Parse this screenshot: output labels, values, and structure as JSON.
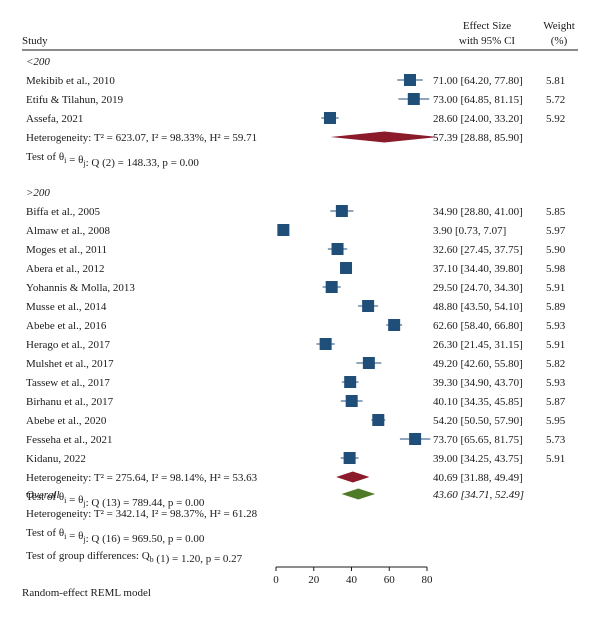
{
  "header": {
    "study": "Study",
    "effect_line1": "Effect Size",
    "effect_line2": "with 95% CI",
    "weight_line1": "Weight",
    "weight_line2": "(%)"
  },
  "footer_model": "Random-effect REML model",
  "colors": {
    "box": "#1f4e79",
    "subgroup_diamond": "#8b1a2b",
    "overall_diamond": "#4f7a28",
    "line": "#1f4e79"
  },
  "chart_data": {
    "type": "forest",
    "xlim": [
      0,
      80
    ],
    "x_ticks": [
      0,
      20,
      40,
      60,
      80
    ],
    "subgroups": [
      {
        "label": "<200",
        "studies": [
          {
            "name": "Mekibib et al., 2010",
            "es": 71.0,
            "lo": 64.2,
            "hi": 77.8,
            "es_text": "71.00 [64.20, 77.80]",
            "weight": "5.81"
          },
          {
            "name": "Etifu & Tilahun, 2019",
            "es": 73.0,
            "lo": 64.85,
            "hi": 81.15,
            "es_text": "73.00 [64.85, 81.15]",
            "weight": "5.72"
          },
          {
            "name": "Assefa, 2021",
            "es": 28.6,
            "lo": 24.0,
            "hi": 33.2,
            "es_text": "28.60 [24.00, 33.20]",
            "weight": "5.92"
          }
        ],
        "summary": {
          "es": 57.39,
          "lo": 28.88,
          "hi": 85.9,
          "es_text": "57.39 [28.88, 85.90]"
        },
        "heterogeneity": "Heterogeneity: T² = 623.07, I² = 98.33%, H² = 59.71",
        "test": "Test of θi = θj: Q (2) = 148.33, p = 0.00"
      },
      {
        "label": ">200",
        "studies": [
          {
            "name": "Biffa et al., 2005",
            "es": 34.9,
            "lo": 28.8,
            "hi": 41.0,
            "es_text": "34.90 [28.80, 41.00]",
            "weight": "5.85"
          },
          {
            "name": "Almaw et al., 2008",
            "es": 3.9,
            "lo": 0.73,
            "hi": 7.07,
            "es_text": "3.90 [0.73, 7.07]",
            "weight": "5.97"
          },
          {
            "name": "Moges et al., 2011",
            "es": 32.6,
            "lo": 27.45,
            "hi": 37.75,
            "es_text": "32.60 [27.45, 37.75]",
            "weight": "5.90"
          },
          {
            "name": "Abera et al., 2012",
            "es": 37.1,
            "lo": 34.4,
            "hi": 39.8,
            "es_text": "37.10 [34.40, 39.80]",
            "weight": "5.98"
          },
          {
            "name": "Yohannis & Molla, 2013",
            "es": 29.5,
            "lo": 24.7,
            "hi": 34.3,
            "es_text": "29.50 [24.70, 34.30]",
            "weight": "5.91"
          },
          {
            "name": "Musse et al., 2014",
            "es": 48.8,
            "lo": 43.5,
            "hi": 54.1,
            "es_text": "48.80 [43.50, 54.10]",
            "weight": "5.89"
          },
          {
            "name": "Abebe et al., 2016",
            "es": 62.6,
            "lo": 58.4,
            "hi": 66.8,
            "es_text": "62.60 [58.40, 66.80]",
            "weight": "5.93"
          },
          {
            "name": "Herago et al., 2017",
            "es": 26.3,
            "lo": 21.45,
            "hi": 31.15,
            "es_text": "26.30 [21.45, 31.15]",
            "weight": "5.91"
          },
          {
            "name": "Mulshet et al., 2017",
            "es": 49.2,
            "lo": 42.6,
            "hi": 55.8,
            "es_text": "49.20 [42.60, 55.80]",
            "weight": "5.82"
          },
          {
            "name": "Tassew et al., 2017",
            "es": 39.3,
            "lo": 34.9,
            "hi": 43.7,
            "es_text": "39.30 [34.90, 43.70]",
            "weight": "5.93"
          },
          {
            "name": "Birhanu et al., 2017",
            "es": 40.1,
            "lo": 34.35,
            "hi": 45.85,
            "es_text": "40.10 [34.35, 45.85]",
            "weight": "5.87"
          },
          {
            "name": "Abebe et al., 2020",
            "es": 54.2,
            "lo": 50.5,
            "hi": 57.9,
            "es_text": "54.20 [50.50, 57.90]",
            "weight": "5.95"
          },
          {
            "name": "Fesseha et al., 2021",
            "es": 73.7,
            "lo": 65.65,
            "hi": 81.75,
            "es_text": "73.70 [65.65, 81.75]",
            "weight": "5.73"
          },
          {
            "name": "Kidanu, 2022",
            "es": 39.0,
            "lo": 34.25,
            "hi": 43.75,
            "es_text": "39.00 [34.25, 43.75]",
            "weight": "5.91"
          }
        ],
        "summary": {
          "es": 40.69,
          "lo": 31.88,
          "hi": 49.49,
          "es_text": "40.69 [31.88, 49.49]"
        },
        "heterogeneity": "Heterogeneity: T² = 275.64, I² = 98.14%, H² = 53.63",
        "test": "Test of θi = θj: Q (13) = 789.44, p = 0.00"
      }
    ],
    "overall": {
      "label": "Overall",
      "es": 43.6,
      "lo": 34.71,
      "hi": 52.49,
      "es_text": "43.60 [34.71, 52.49]",
      "heterogeneity": "Heterogeneity: T² = 342.14, I² = 98.37%, H² = 61.28",
      "test": "Test of θi = θj: Q (16) = 969.50, p = 0.00"
    },
    "group_difference_test": "Test of group differences: Qb (1) = 1.20, p = 0.27"
  }
}
